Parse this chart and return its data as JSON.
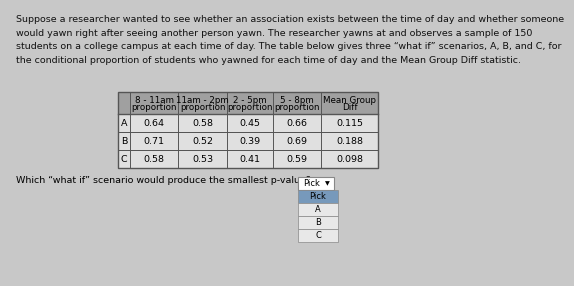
{
  "paragraph_lines": [
    "Suppose a researcher wanted to see whether an association exists between the time of day and whether someone",
    "would yawn right after seeing another person yawn. The researcher yawns at and observes a sample of 150",
    "students on a college campus at each time of day. The table below gives three “what if” scenarios, A, B, and C, for",
    "the conditional proportion of students who yawned for each time of day and the Mean Group Diff statistic."
  ],
  "table_headers_line1": [
    "8 - 11am",
    "11am - 2pm",
    "2 - 5pm",
    "5 - 8pm",
    "Mean Group"
  ],
  "table_headers_line2": [
    "proportion",
    "proportion",
    "proportion",
    "proportion",
    "Diff"
  ],
  "row_labels": [
    "A",
    "B",
    "C"
  ],
  "table_data": [
    [
      "0.64",
      "0.58",
      "0.45",
      "0.66",
      "0.115"
    ],
    [
      "0.71",
      "0.52",
      "0.39",
      "0.69",
      "0.188"
    ],
    [
      "0.58",
      "0.53",
      "0.41",
      "0.59",
      "0.098"
    ]
  ],
  "question": "Which “what if” scenario would produce the smallest p-value?",
  "bg_color": "#c8c8c8",
  "table_header_bg": "#a0a0a0",
  "table_row_bg": "#e0e0e0",
  "table_border_color": "#555555",
  "text_color": "#111111",
  "font_size_para": 6.8,
  "font_size_table_header": 6.3,
  "font_size_table_data": 6.8,
  "font_size_question": 6.8,
  "drop_highlight": "#7799bb",
  "drop_bg": "#e8e8e8"
}
